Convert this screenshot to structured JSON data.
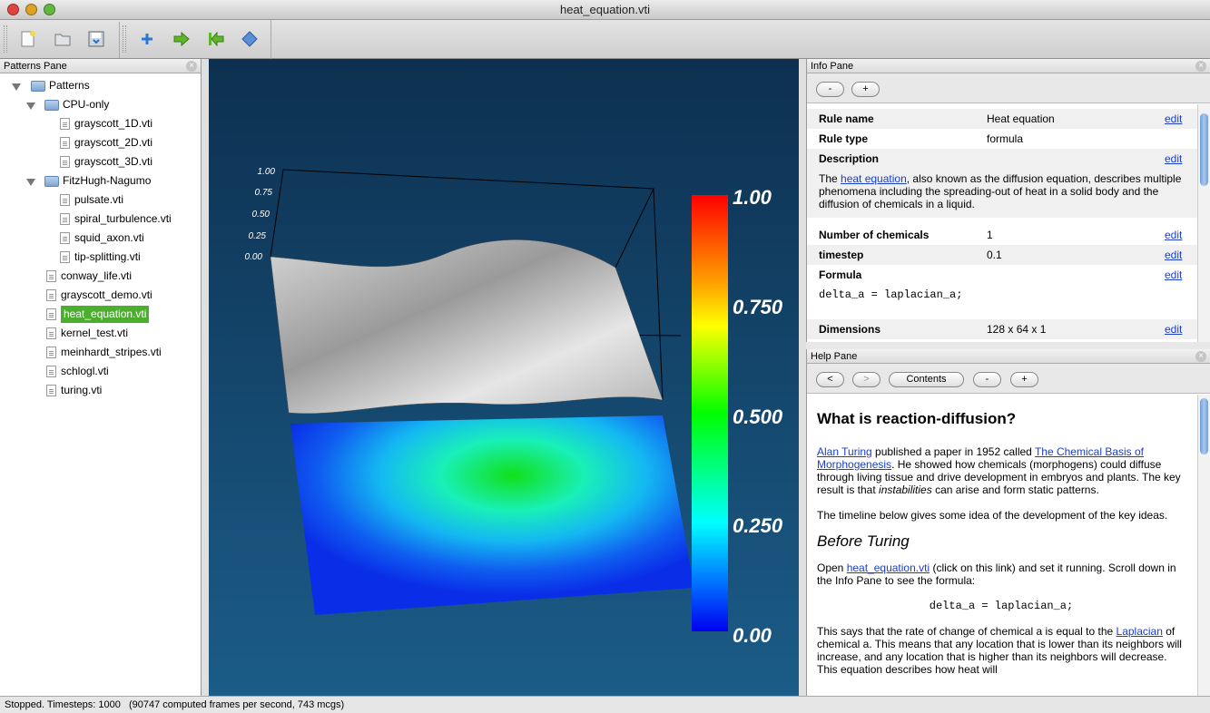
{
  "window": {
    "title": "heat_equation.vti"
  },
  "patterns_pane": {
    "title": "Patterns Pane",
    "root": "Patterns",
    "folders": [
      "CPU-only",
      "FitzHugh-Nagumo"
    ],
    "cpu_files": [
      "grayscott_1D.vti",
      "grayscott_2D.vti",
      "grayscott_3D.vti"
    ],
    "fhn_files": [
      "pulsate.vti",
      "spiral_turbulence.vti",
      "squid_axon.vti",
      "tip-splitting.vti"
    ],
    "files": [
      "conway_life.vti",
      "grayscott_demo.vti",
      "heat_equation.vti",
      "kernel_test.vti",
      "meinhardt_stripes.vti",
      "schlogl.vti",
      "turing.vti"
    ],
    "selected": "heat_equation.vti"
  },
  "viewport": {
    "axis_ticks": [
      "1.00",
      "0.75",
      "0.50",
      "0.25",
      "0.00"
    ],
    "colorbar_labels": [
      "1.00",
      "0.750",
      "0.500",
      "0.250",
      "0.00"
    ]
  },
  "info_pane": {
    "title": "Info Pane",
    "minus": "-",
    "plus": "+",
    "edit": "edit",
    "rule_name_label": "Rule name",
    "rule_name": "Heat equation",
    "rule_type_label": "Rule type",
    "rule_type": "formula",
    "description_label": "Description",
    "desc_link": "heat equation",
    "desc_text": ", also known as the diffusion equation, describes multiple phenomena including the spreading-out of heat in a solid body and the diffusion of chemicals in a liquid.",
    "desc_prefix": "The ",
    "num_chem_label": "Number of chemicals",
    "num_chem": "1",
    "timestep_label": "timestep",
    "timestep": "0.1",
    "formula_label": "Formula",
    "formula": "delta_a = laplacian_a;",
    "dimensions_label": "Dimensions",
    "dimensions": "128 x 64 x 1"
  },
  "help_pane": {
    "title": "Help Pane",
    "back": "<",
    "forward": ">",
    "contents": "Contents",
    "minus": "-",
    "plus": "+",
    "heading": "What is reaction-diffusion?",
    "p1_link1": "Alan Turing",
    "p1_text1": " published a paper in 1952 called ",
    "p1_link2": "The Chemical Basis of Morphogenesis",
    "p1_text2": ". He showed how chemicals (morphogens) could diffuse through living tissue and drive development in embryos and plants. The key result is that ",
    "p1_em": "instabilities",
    "p1_text3": " can arise and form static patterns.",
    "p2": "The timeline below gives some idea of the development of the key ideas.",
    "subheading": "Before Turing",
    "p3_text1": "Open ",
    "p3_link": "heat_equation.vti",
    "p3_text2": " (click on this link) and set it running. Scroll down in the Info Pane to see the formula:",
    "code": "delta_a = laplacian_a;",
    "p4_text1": "This says that the rate of change of chemical a is equal to the ",
    "p4_link": "Laplacian",
    "p4_text2": " of chemical a. This means that any location that is lower than its neighbors will increase, and any location that is higher than its neighbors will decrease. This equation describes how heat will"
  },
  "status": "Stopped. Timesteps: 1000   (90747 computed frames per second, 743 mcgs)",
  "colors": {
    "selection": "#4cae2f",
    "link": "#1a3fcc"
  }
}
